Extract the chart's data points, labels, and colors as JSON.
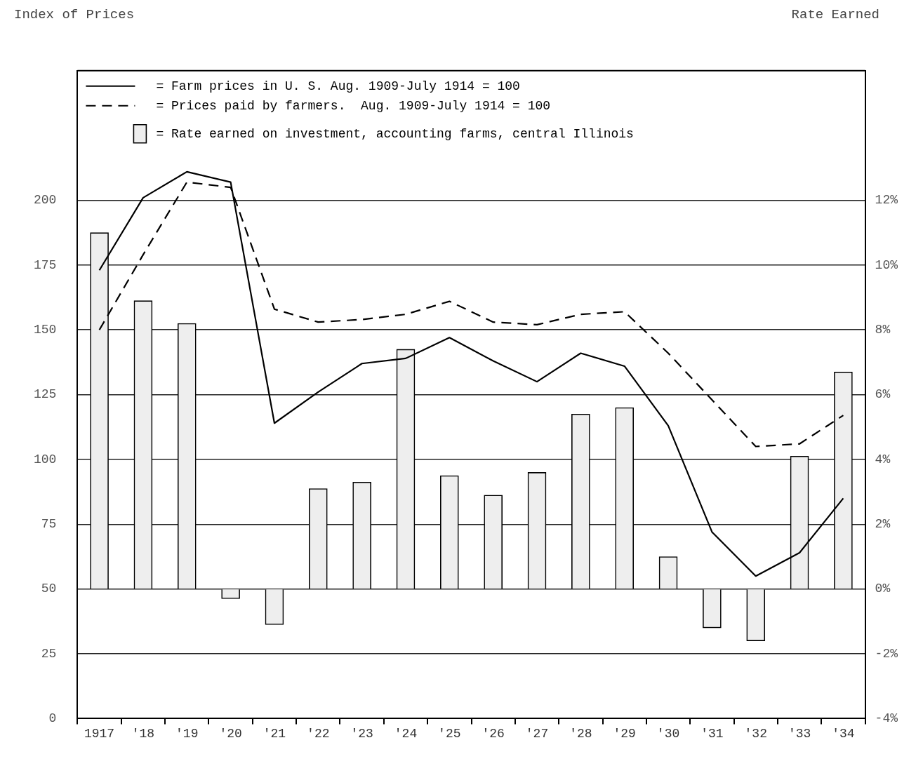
{
  "chart_data": {
    "type": "line",
    "ylabel": "Index of Prices",
    "y2label": "Rate Earned",
    "categories": [
      "1917",
      "'18",
      "'19",
      "'20",
      "'21",
      "'22",
      "'23",
      "'24",
      "'25",
      "'26",
      "'27",
      "'28",
      "'29",
      "'30",
      "'31",
      "'32",
      "'33",
      "'34"
    ],
    "ylim": [
      0,
      250
    ],
    "yticks": [
      0,
      25,
      50,
      75,
      100,
      125,
      150,
      175,
      200
    ],
    "y2lim": [
      -4,
      16
    ],
    "y2ticks": [
      {
        "value": -4,
        "label": "-4%"
      },
      {
        "value": -2,
        "label": "-2%"
      },
      {
        "value": 0,
        "label": "0%"
      },
      {
        "value": 2,
        "label": "2%"
      },
      {
        "value": 4,
        "label": "4%"
      },
      {
        "value": 6,
        "label": "6%"
      },
      {
        "value": 8,
        "label": "8%"
      },
      {
        "value": 10,
        "label": "10%"
      },
      {
        "value": 12,
        "label": "12%"
      }
    ],
    "grid": "y",
    "legend": "top",
    "marker": "none",
    "series": [
      {
        "name": "= Farm prices in U. S. Aug. 1909-July 1914 = 100",
        "line_style": "solid",
        "color": "#000000",
        "values": [
          173,
          201,
          211,
          207,
          114,
          126,
          137,
          139,
          147,
          138,
          130,
          141,
          136,
          113,
          72,
          55,
          64,
          85
        ]
      },
      {
        "name": "= Prices paid by farmers.  Aug. 1909-July 1914 = 100",
        "line_style": "dashed",
        "color": "#000000",
        "values": [
          150,
          179,
          207,
          205,
          158,
          153,
          154,
          156,
          161,
          153,
          152,
          156,
          157,
          141,
          123,
          105,
          106,
          117
        ]
      },
      {
        "name": "= Rate earned on investment, accounting farms, central Illinois",
        "type": "bar",
        "axis": "y2",
        "color": "#eeeeee",
        "values": [
          11.0,
          8.9,
          8.2,
          -0.3,
          -1.1,
          3.1,
          3.3,
          7.4,
          3.5,
          2.9,
          3.6,
          5.4,
          5.6,
          1.0,
          -1.2,
          -1.6,
          4.1,
          6.7
        ]
      }
    ]
  }
}
